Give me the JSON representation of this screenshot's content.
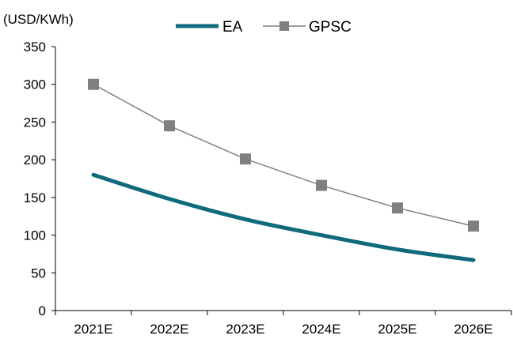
{
  "chart_data": {
    "type": "line",
    "categories": [
      "2021E",
      "2022E",
      "2023E",
      "2024E",
      "2025E",
      "2026E"
    ],
    "series": [
      {
        "name": "EA",
        "values": [
          180,
          148,
          121,
          100,
          81,
          67
        ],
        "color": "#0f6a7b",
        "marker": "none"
      },
      {
        "name": "GPSC",
        "values": [
          300,
          245,
          201,
          166,
          136,
          112
        ],
        "color": "#808080",
        "marker": "square"
      }
    ],
    "unit_label": "(USD/KWh)",
    "ylim": [
      0,
      350
    ],
    "yticks": [
      0,
      50,
      100,
      150,
      200,
      250,
      300,
      350
    ],
    "grid": false,
    "legend": "top"
  }
}
